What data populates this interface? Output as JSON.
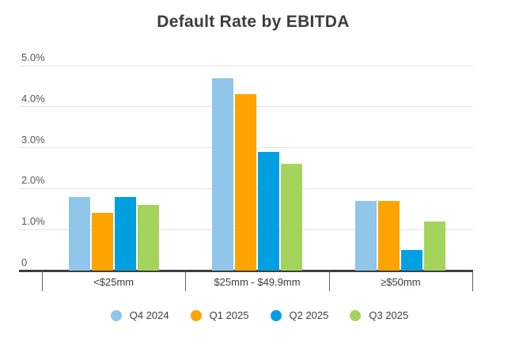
{
  "chart_data": {
    "type": "bar",
    "title": "Default Rate by EBITDA",
    "categories": [
      "<$25mm",
      "$25mm - $49.9mm",
      "≥$50mm"
    ],
    "series": [
      {
        "name": "Q4 2024",
        "color": "#8FC6E9",
        "values": [
          1.8,
          4.7,
          1.7
        ]
      },
      {
        "name": "Q1 2025",
        "color": "#FFA300",
        "values": [
          1.4,
          4.3,
          1.7
        ]
      },
      {
        "name": "Q2 2025",
        "color": "#00A0E0",
        "values": [
          1.8,
          2.9,
          0.5
        ]
      },
      {
        "name": "Q3 2025",
        "color": "#A4D45C",
        "values": [
          1.6,
          2.6,
          1.2
        ]
      }
    ],
    "y_axis": {
      "tick_labels": [
        "5.0%",
        "4.0%",
        "3.0%",
        "2.0%",
        "1.0%",
        "0"
      ],
      "tick_values": [
        5,
        4,
        3,
        2,
        1,
        0
      ],
      "ylim": [
        0,
        5
      ],
      "format": "percent"
    },
    "legend_position": "bottom",
    "grid": true,
    "colors": {
      "axis_line": "#3f3f3f",
      "gridline": "#e4e4e4",
      "axis_text": "#565656",
      "category_text": "#3c3c3c",
      "title_text": "#3c3c3c"
    }
  }
}
